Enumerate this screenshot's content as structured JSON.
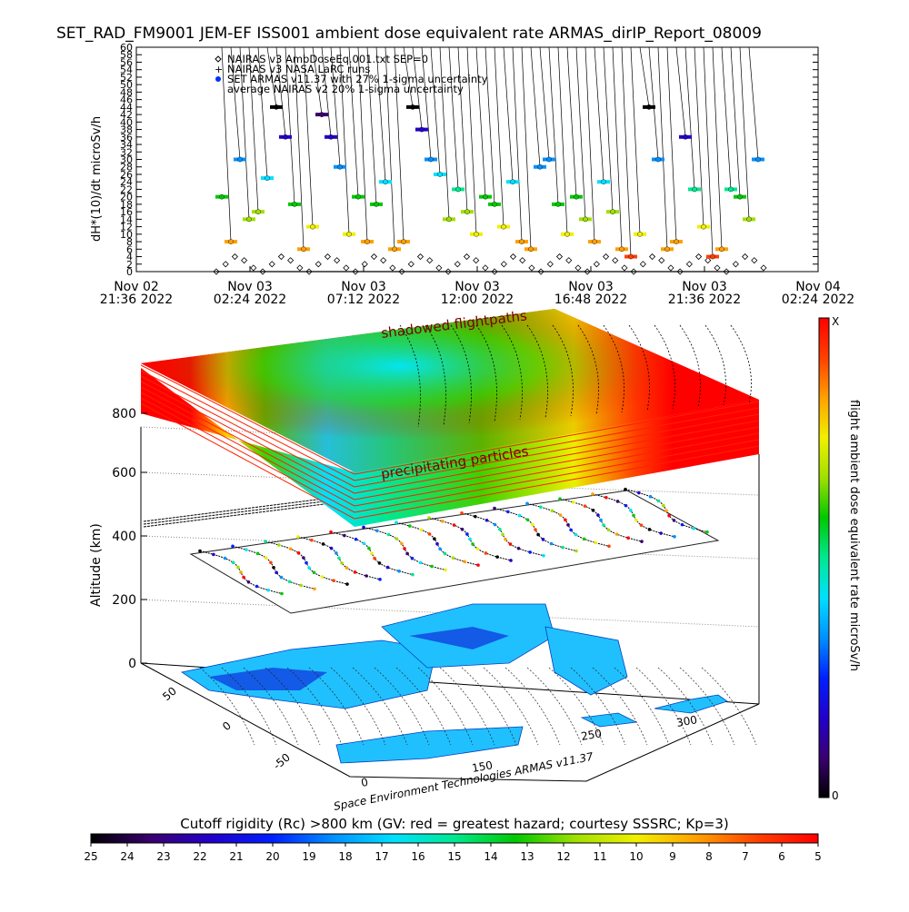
{
  "page": {
    "title": "SET_RAD_FM9001  JEM-EF ISS001 ambient dose equivalent rate ARMAS_dirIP_Report_08009",
    "credit": "Space Environment Technologies ARMAS v11.37"
  },
  "chart_data": [
    {
      "type": "scatter",
      "title": "SET_RAD_FM9001  JEM-EF ISS001 ambient dose equivalent rate ARMAS_dirIP_Report_08009",
      "ylabel": "dH*(10)/dt microSv/h",
      "ylim": [
        0,
        60
      ],
      "y_ticks": [
        "0",
        "2",
        "4",
        "6",
        "8",
        "10",
        "12",
        "14",
        "16",
        "18",
        "20",
        "22",
        "24",
        "26",
        "28",
        "30",
        "32",
        "34",
        "36",
        "38",
        "40",
        "42",
        "44",
        "46",
        "48",
        "50",
        "52",
        "54",
        "56",
        "58",
        "60"
      ],
      "x_ticks": [
        {
          "date": "Nov 02",
          "time": "21:36 2022"
        },
        {
          "date": "Nov 03",
          "time": "02:24 2022"
        },
        {
          "date": "Nov 03",
          "time": "07:12 2022"
        },
        {
          "date": "Nov 03",
          "time": "12:00 2022"
        },
        {
          "date": "Nov 03",
          "time": "16:48 2022"
        },
        {
          "date": "Nov 03",
          "time": "21:36 2022"
        },
        {
          "date": "Nov 04",
          "time": "02:24 2022"
        }
      ],
      "legend_position": "top-left",
      "legend": [
        {
          "symbol": "diamond",
          "text": "NAIRAS v3 AmbDoseEq.001.txt SEP=0"
        },
        {
          "symbol": "plus",
          "text": "NAIRAS v3 NASA LaRC runs"
        },
        {
          "symbol": "filled-circle",
          "text": "SET ARMAS v11.37 with 27% 1-sigma uncertainty"
        },
        {
          "symbol": "none",
          "text": "average NAIRAS v2 20% 1-sigma uncertainty"
        }
      ],
      "series": [
        {
          "name": "NAIRAS v3 AmbDoseEq.001.txt SEP=0",
          "note_values": "oscillating 0-4 microSv/h through record",
          "values": [
            0,
            2,
            4,
            3,
            1,
            0,
            2,
            4,
            3,
            1,
            0,
            2,
            4,
            3,
            1,
            0,
            2,
            4,
            3,
            1,
            0,
            2,
            4,
            3,
            1,
            0,
            2,
            4,
            3,
            1,
            0,
            2,
            4,
            3,
            1,
            0,
            2,
            4,
            3,
            1,
            0,
            2,
            4,
            3,
            1,
            0,
            2,
            4,
            3,
            1,
            0,
            2,
            4,
            3,
            1,
            0,
            2,
            4,
            3,
            1
          ]
        },
        {
          "name": "SET ARMAS v11.37 with 27% 1-sigma uncertainty",
          "values": [
            20,
            8,
            30,
            14,
            16,
            25,
            44,
            36,
            18,
            6,
            12,
            42,
            36,
            28,
            10,
            20,
            8,
            18,
            24,
            6,
            8,
            44,
            38,
            30,
            26,
            14,
            22,
            16,
            10,
            20,
            18,
            12,
            24,
            8,
            6,
            28,
            30,
            18,
            10,
            20,
            14,
            8,
            24,
            16,
            6,
            4,
            10,
            44,
            30,
            6,
            8,
            36,
            22,
            12,
            4,
            6,
            22,
            20,
            14,
            30
          ]
        }
      ]
    },
    {
      "type": "heatmap",
      "title": "",
      "zlabel": "Altitude (km)",
      "z_ticks": [
        "0",
        "200",
        "400",
        "600",
        "800"
      ],
      "lat_ticks": [
        "50",
        "0",
        "-50"
      ],
      "lon_ticks": [
        "0",
        "150",
        "250",
        "300"
      ],
      "annotations": [
        "shadowed flightpaths",
        "precipitating particles"
      ]
    }
  ],
  "colorbar_right": {
    "label": "flight ambient dose equivalent rate microSv/h",
    "top_label": "X",
    "bottom_label": "0"
  },
  "colorbar_bottom": {
    "title": "Cutoff rigidity (Rc) >800 km (GV: red = greatest hazard; courtesy SSSRC; Kp=3)",
    "ticks": [
      "25",
      "24",
      "23",
      "22",
      "21",
      "20",
      "19",
      "18",
      "17",
      "16",
      "15",
      "14",
      "13",
      "12",
      "11",
      "10",
      "9",
      "8",
      "7",
      "6",
      "5"
    ]
  },
  "colors": {
    "rainbow": [
      "#000000",
      "#3a0070",
      "#2200cc",
      "#0020ff",
      "#0090ff",
      "#00e0ff",
      "#00e890",
      "#00c800",
      "#a0e000",
      "#f0f000",
      "#ffa000",
      "#ff4000",
      "#ff0000"
    ]
  }
}
